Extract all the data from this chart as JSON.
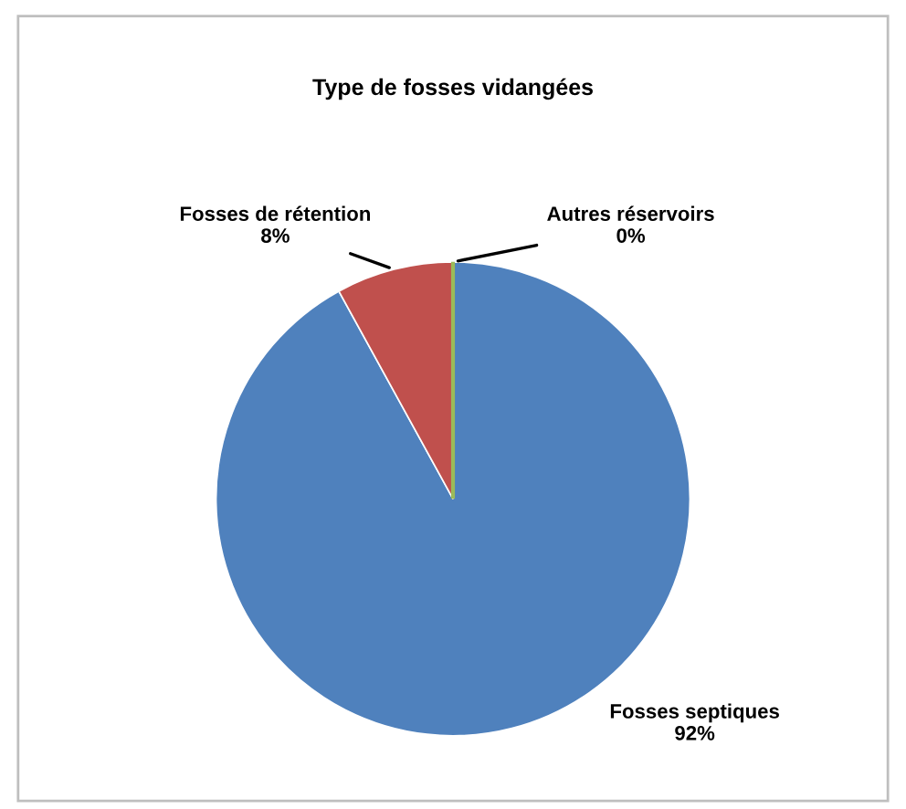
{
  "chart_data": {
    "type": "pie",
    "title": "Type de fosses vidangées",
    "categories": [
      "Fosses septiques",
      "Fosses de rétention",
      "Autres réservoirs"
    ],
    "values": [
      92,
      8,
      0
    ],
    "colors": [
      "#4f81bd",
      "#c0504d",
      "#9bbb59"
    ],
    "value_labels": [
      "92%",
      "8%",
      "0%"
    ]
  }
}
